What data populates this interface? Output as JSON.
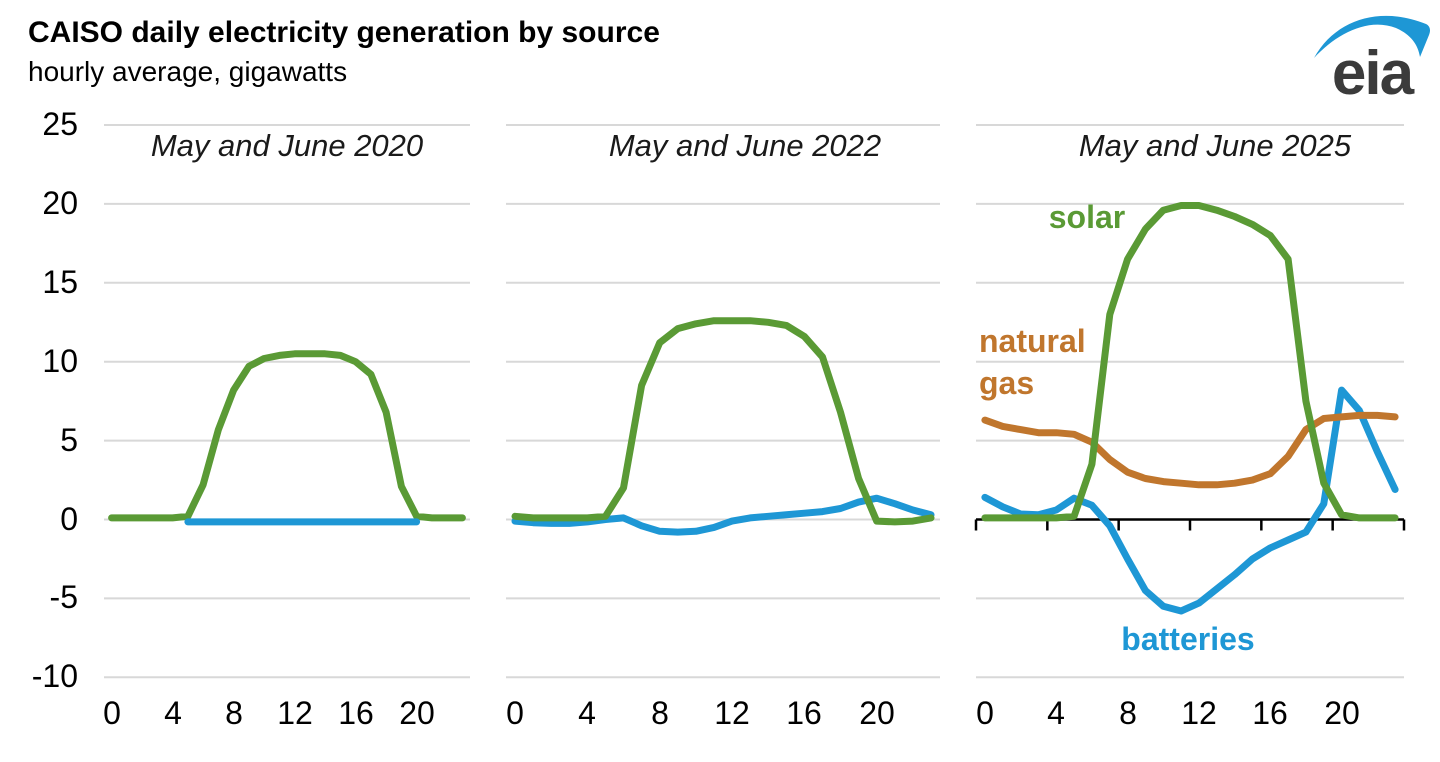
{
  "header": {
    "title": "CAISO daily electricity generation by source",
    "subtitle": "hourly average, gigawatts"
  },
  "logo": {
    "text": "eia"
  },
  "colors": {
    "solar": "#5a9a35",
    "batteries": "#1e97d5",
    "natural_gas": "#c0762d",
    "gridline": "#d8d8d8",
    "axis": "#000000",
    "logo_swoosh": "#1e97d5",
    "logo_text": "#3b3b3b"
  },
  "y_axis": {
    "tick_values": [
      25,
      20,
      15,
      10,
      5,
      0,
      -5,
      -10
    ],
    "tick_labels": [
      "25",
      "20",
      "15",
      "10",
      "5",
      "0",
      "-5",
      "-10"
    ],
    "min": -10,
    "max": 25
  },
  "x_axis": {
    "tick_values": [
      0,
      4,
      8,
      12,
      16,
      20
    ],
    "tick_labels": [
      "0",
      "4",
      "8",
      "12",
      "16",
      "20"
    ]
  },
  "chart_data": [
    {
      "type": "line",
      "title": "May and June 2020",
      "x": [
        0,
        1,
        2,
        3,
        4,
        5,
        6,
        7,
        8,
        9,
        10,
        11,
        12,
        13,
        14,
        15,
        16,
        17,
        18,
        19,
        20,
        21,
        22,
        23
      ],
      "xticks": [
        0,
        4,
        8,
        12,
        16,
        20
      ],
      "ylim": [
        -10,
        25
      ],
      "zero_axis": false,
      "series": [
        {
          "name": "solar",
          "label": "solar",
          "color_key": "solar",
          "values": [
            0.1,
            0.1,
            0.1,
            0.1,
            0.1,
            0.2,
            2.2,
            5.7,
            8.2,
            9.7,
            10.2,
            10.4,
            10.5,
            10.5,
            10.5,
            10.4,
            10.0,
            9.2,
            6.8,
            2.1,
            0.2,
            0.1,
            0.1,
            0.1
          ]
        },
        {
          "name": "batteries",
          "label": "batteries",
          "color_key": "batteries",
          "values": [
            null,
            null,
            null,
            null,
            null,
            -0.15,
            -0.15,
            -0.15,
            -0.15,
            -0.15,
            -0.15,
            -0.15,
            -0.15,
            -0.15,
            -0.15,
            -0.15,
            -0.15,
            -0.15,
            -0.15,
            -0.15,
            -0.15,
            null,
            null,
            null
          ]
        }
      ]
    },
    {
      "type": "line",
      "title": "May and June 2022",
      "x": [
        0,
        1,
        2,
        3,
        4,
        5,
        6,
        7,
        8,
        9,
        10,
        11,
        12,
        13,
        14,
        15,
        16,
        17,
        18,
        19,
        20,
        21,
        22,
        23
      ],
      "xticks": [
        0,
        4,
        8,
        12,
        16,
        20
      ],
      "ylim": [
        -10,
        25
      ],
      "zero_axis": false,
      "series": [
        {
          "name": "batteries",
          "label": "batteries",
          "color_key": "batteries",
          "values": [
            -0.1,
            -0.2,
            -0.25,
            -0.25,
            -0.15,
            0.0,
            0.1,
            -0.4,
            -0.75,
            -0.8,
            -0.75,
            -0.5,
            -0.1,
            0.1,
            0.2,
            0.3,
            0.4,
            0.5,
            0.7,
            1.1,
            1.35,
            1.0,
            0.6,
            0.3
          ]
        },
        {
          "name": "solar",
          "label": "solar",
          "color_key": "solar",
          "values": [
            0.2,
            0.1,
            0.1,
            0.1,
            0.1,
            0.2,
            2.0,
            8.5,
            11.2,
            12.1,
            12.4,
            12.6,
            12.6,
            12.6,
            12.5,
            12.3,
            11.6,
            10.3,
            6.8,
            2.6,
            -0.1,
            -0.15,
            -0.1,
            0.1
          ]
        }
      ]
    },
    {
      "type": "line",
      "title": "May and June 2025",
      "x": [
        0,
        1,
        2,
        3,
        4,
        5,
        6,
        7,
        8,
        9,
        10,
        11,
        12,
        13,
        14,
        15,
        16,
        17,
        18,
        19,
        20,
        21,
        22,
        23
      ],
      "xticks": [
        0,
        4,
        8,
        12,
        16,
        20
      ],
      "ylim": [
        -10,
        25
      ],
      "zero_axis": true,
      "series": [
        {
          "name": "batteries",
          "label": "batteries",
          "color_key": "batteries",
          "values": [
            1.4,
            0.8,
            0.35,
            0.3,
            0.6,
            1.35,
            0.9,
            -0.4,
            -2.5,
            -4.5,
            -5.5,
            -5.8,
            -5.3,
            -4.4,
            -3.5,
            -2.5,
            -1.8,
            -1.3,
            -0.8,
            1.0,
            8.2,
            6.9,
            4.3,
            1.9
          ]
        },
        {
          "name": "natural gas",
          "label": "natural gas",
          "color_key": "natural_gas",
          "values": [
            6.3,
            5.9,
            5.7,
            5.5,
            5.5,
            5.4,
            4.9,
            3.8,
            3.0,
            2.6,
            2.4,
            2.3,
            2.2,
            2.2,
            2.3,
            2.5,
            2.9,
            4.0,
            5.7,
            6.4,
            6.5,
            6.6,
            6.6,
            6.5
          ]
        },
        {
          "name": "solar",
          "label": "solar",
          "color_key": "solar",
          "values": [
            0.1,
            0.1,
            0.1,
            0.1,
            0.1,
            0.2,
            3.5,
            13.0,
            16.5,
            18.4,
            19.6,
            19.9,
            19.9,
            19.6,
            19.2,
            18.7,
            18.0,
            16.5,
            7.5,
            2.3,
            0.3,
            0.1,
            0.1,
            0.1
          ]
        }
      ]
    }
  ]
}
